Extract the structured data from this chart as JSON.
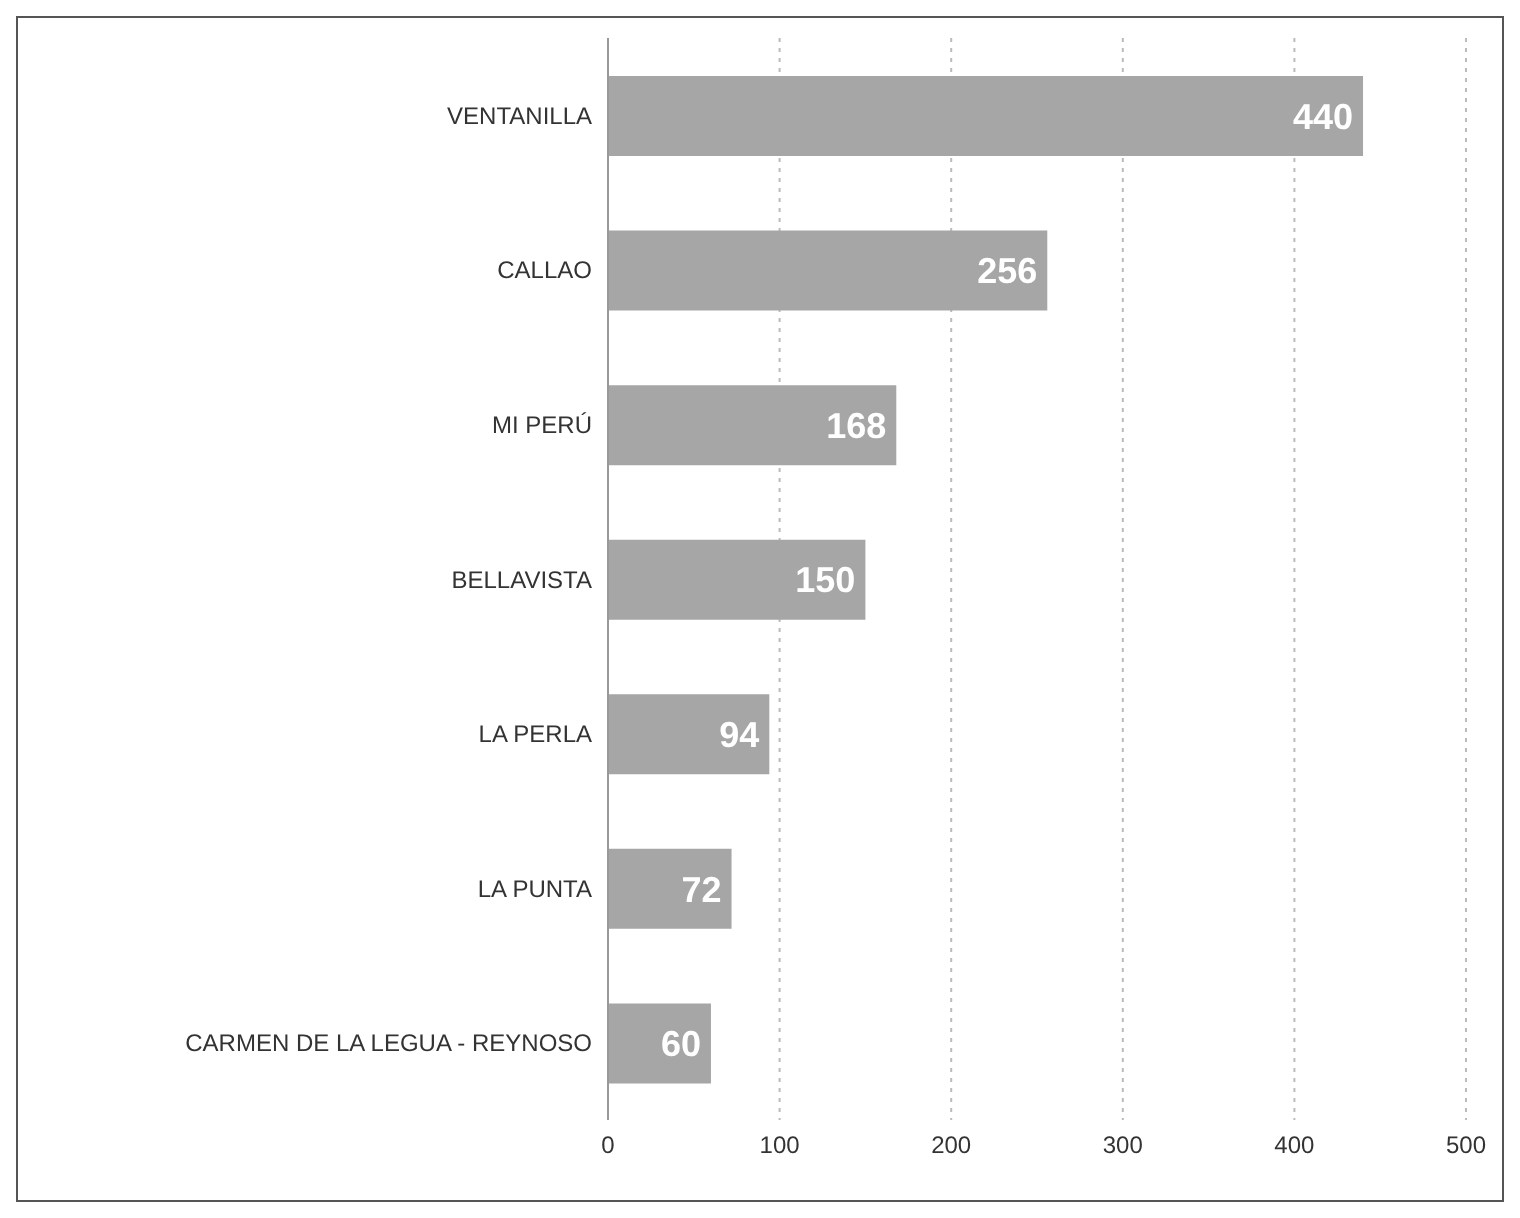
{
  "chart_data": {
    "type": "bar",
    "orientation": "horizontal",
    "categories": [
      "VENTANILLA",
      "CALLAO",
      "MI PERÚ",
      "BELLAVISTA",
      "LA PERLA",
      "LA PUNTA",
      "CARMEN DE LA LEGUA - REYNOSO"
    ],
    "values": [
      440,
      256,
      168,
      150,
      94,
      72,
      60
    ],
    "color": "#a6a6a6",
    "xlim": [
      0,
      500
    ],
    "xticks": [
      0,
      100,
      200,
      300,
      400,
      500
    ],
    "grid": "x",
    "data_labels": true
  }
}
